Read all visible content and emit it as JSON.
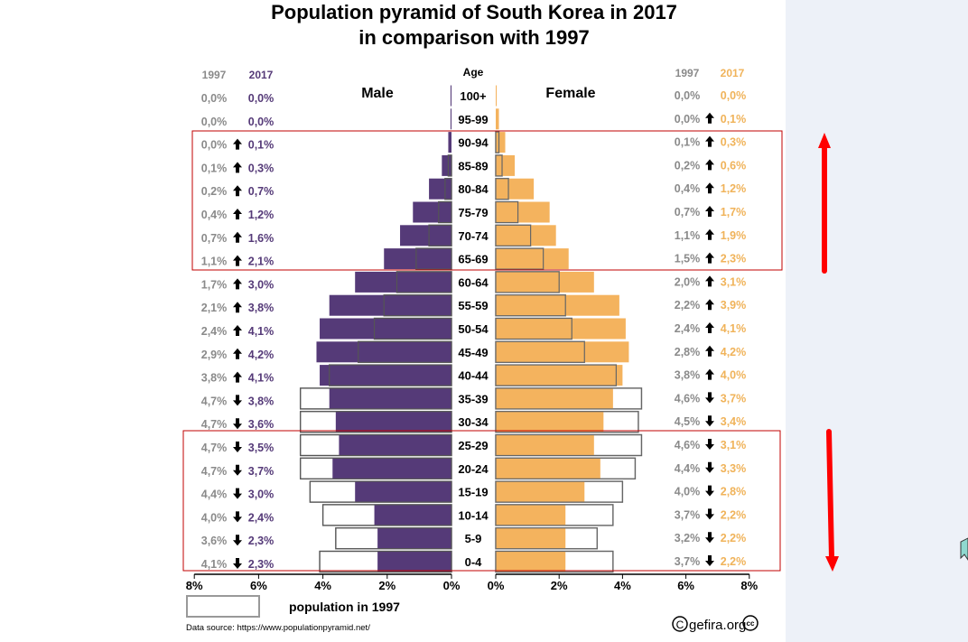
{
  "chart_data": {
    "type": "bar",
    "orientation": "horizontal-pyramid",
    "title": "Population pyramid of South Korea in 2017",
    "subtitle": "in comparison with 1997",
    "age_header": "Age",
    "male_label": "Male",
    "female_label": "Female",
    "year_headers": {
      "old": "1997",
      "new": "2017"
    },
    "categories": [
      "100+",
      "95-99",
      "90-94",
      "85-89",
      "80-84",
      "75-79",
      "70-74",
      "65-69",
      "60-64",
      "55-59",
      "50-54",
      "45-49",
      "40-44",
      "35-39",
      "30-34",
      "25-29",
      "20-24",
      "15-19",
      "10-14",
      "5-9",
      "0-4"
    ],
    "series": [
      {
        "name": "Male 1997",
        "values": [
          0.0,
          0.0,
          0.0,
          0.1,
          0.2,
          0.4,
          0.7,
          1.1,
          1.7,
          2.1,
          2.4,
          2.9,
          3.8,
          4.7,
          4.7,
          4.7,
          4.7,
          4.4,
          4.0,
          3.6,
          4.1
        ]
      },
      {
        "name": "Male 2017",
        "values": [
          0.0,
          0.0,
          0.1,
          0.3,
          0.7,
          1.2,
          1.6,
          2.1,
          3.0,
          3.8,
          4.1,
          4.2,
          4.1,
          3.8,
          3.6,
          3.5,
          3.7,
          3.0,
          2.4,
          2.3,
          2.3
        ]
      },
      {
        "name": "Female 1997",
        "values": [
          0.0,
          0.0,
          0.1,
          0.2,
          0.4,
          0.7,
          1.1,
          1.5,
          2.0,
          2.2,
          2.4,
          2.8,
          3.8,
          4.6,
          4.5,
          4.6,
          4.4,
          4.0,
          3.7,
          3.2,
          3.7
        ]
      },
      {
        "name": "Female 2017",
        "values": [
          0.0,
          0.1,
          0.3,
          0.6,
          1.2,
          1.7,
          1.9,
          2.3,
          3.1,
          3.9,
          4.1,
          4.2,
          4.0,
          3.7,
          3.4,
          3.1,
          3.3,
          2.8,
          2.2,
          2.2,
          2.2
        ]
      }
    ],
    "male_labels_1997": [
      "0,0%",
      "0,0%",
      "0,0%",
      "0,1%",
      "0,2%",
      "0,4%",
      "0,7%",
      "1,1%",
      "1,7%",
      "2,1%",
      "2,4%",
      "2,9%",
      "3,8%",
      "4,7%",
      "4,7%",
      "4,7%",
      "4,7%",
      "4,4%",
      "4,0%",
      "3,6%",
      "4,1%"
    ],
    "male_labels_2017": [
      "0,0%",
      "0,0%",
      "0,1%",
      "0,3%",
      "0,7%",
      "1,2%",
      "1,6%",
      "2,1%",
      "3,0%",
      "3,8%",
      "4,1%",
      "4,2%",
      "4,1%",
      "3,8%",
      "3,6%",
      "3,5%",
      "3,7%",
      "3,0%",
      "2,4%",
      "2,3%",
      "2,3%"
    ],
    "female_labels_1997": [
      "0,0%",
      "0,0%",
      "0,1%",
      "0,2%",
      "0,4%",
      "0,7%",
      "1,1%",
      "1,5%",
      "2,0%",
      "2,2%",
      "2,4%",
      "2,8%",
      "3,8%",
      "4,6%",
      "4,5%",
      "4,6%",
      "4,4%",
      "4,0%",
      "3,7%",
      "3,2%",
      "3,7%"
    ],
    "female_labels_2017": [
      "0,0%",
      "0,1%",
      "0,3%",
      "0,6%",
      "1,2%",
      "1,7%",
      "1,9%",
      "2,3%",
      "3,1%",
      "3,9%",
      "4,1%",
      "4,2%",
      "4,0%",
      "3,7%",
      "3,4%",
      "3,1%",
      "3,3%",
      "2,8%",
      "2,2%",
      "2,2%",
      "2,2%"
    ],
    "x_ticks_male": [
      "8%",
      "6%",
      "4%",
      "2%",
      "0%"
    ],
    "x_ticks_female": [
      "0%",
      "2%",
      "4%",
      "6%",
      "8%"
    ],
    "xlim": [
      0,
      8
    ],
    "legend": {
      "label": "population in 1997",
      "placement": "bottom-left"
    },
    "source": "Data source: https://www.populationpyramid.net/",
    "credit": "gefira.org",
    "colors": {
      "male": "#553a78",
      "female": "#f4b35e",
      "outline_1997": "#777777",
      "old_label": "#8a8a8a",
      "annotation": "#ff0000"
    },
    "annotations": [
      {
        "type": "highlight-box",
        "rows": [
          "90-94",
          "65-69"
        ],
        "arrow": "up"
      },
      {
        "type": "highlight-box",
        "rows": [
          "25-29",
          "0-4"
        ],
        "arrow": "down"
      }
    ]
  }
}
